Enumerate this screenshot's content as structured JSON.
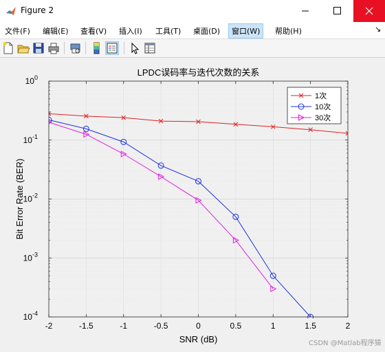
{
  "window": {
    "title": "Figure 2",
    "accent": "#e81123"
  },
  "menu": {
    "items": [
      "文件(F)",
      "编辑(E)",
      "查看(V)",
      "插入(I)",
      "工具(T)",
      "桌面(D)",
      "窗口(W)",
      "帮助(H)"
    ],
    "selected": "窗口(W)",
    "overflow_icon": "chevron-icon"
  },
  "toolbar": {
    "icons": [
      "new-figure-icon",
      "open-icon",
      "save-icon",
      "print-icon",
      "print-preview-icon",
      "colorbar-icon",
      "legend-icon",
      "pointer-icon",
      "property-inspector-icon"
    ]
  },
  "watermark": "CSDN @Matlab程序猿",
  "chart_data": {
    "type": "line",
    "title": "LPDC误码率与迭代次数的关系",
    "xlabel": "SNR (dB)",
    "ylabel": "Bit Error Rate (BER)",
    "xlim": [
      -2,
      2
    ],
    "ylim": [
      0.0001,
      1
    ],
    "yscale": "log",
    "grid": "on",
    "legend_position": "top-right",
    "x_ticks": [
      "-2",
      "-1.5",
      "-1",
      "-0.5",
      "0",
      "0.5",
      "1",
      "1.5",
      "2"
    ],
    "y_tick_exponents": [
      "0",
      "-1",
      "-2",
      "-3",
      "-4"
    ],
    "series": [
      {
        "name": "1次",
        "color": "#e02020",
        "marker": "x",
        "x": [
          -2,
          -1.5,
          -1,
          -0.5,
          0,
          0.5,
          1,
          1.5,
          2
        ],
        "y": [
          0.28,
          0.255,
          0.24,
          0.21,
          0.205,
          0.185,
          0.168,
          0.15,
          0.13
        ]
      },
      {
        "name": "10次",
        "color": "#1a33e0",
        "marker": "circle",
        "x": [
          -2,
          -1.5,
          -1,
          -0.5,
          0,
          0.5,
          1,
          1.5
        ],
        "y": [
          0.22,
          0.155,
          0.093,
          0.037,
          0.02,
          0.005,
          0.0005,
          0.0001
        ]
      },
      {
        "name": "30次",
        "color": "#e020e0",
        "marker": "triangle-right",
        "x": [
          -2,
          -1.5,
          -1,
          -0.5,
          0,
          0.5,
          1
        ],
        "y": [
          0.2,
          0.125,
          0.058,
          0.024,
          0.0095,
          0.002,
          0.0003
        ]
      }
    ]
  }
}
